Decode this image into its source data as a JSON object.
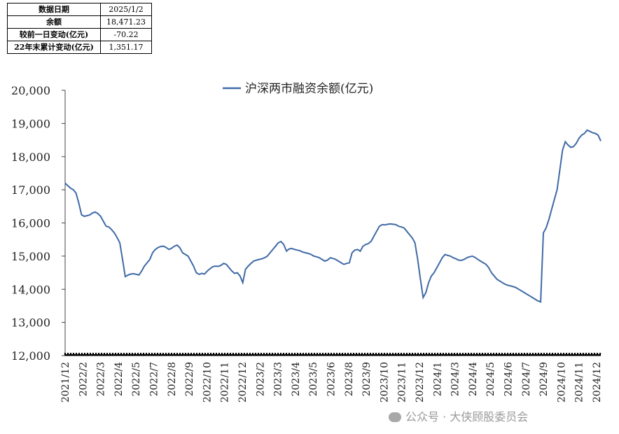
{
  "info_table": {
    "rows": [
      {
        "label": "数据日期",
        "value": "2025/1/2"
      },
      {
        "label": "余额",
        "value": "18,471.23"
      },
      {
        "label": "较前一日变动(亿元)",
        "value": "-70.22"
      },
      {
        "label": "22年末累计变动(亿元)",
        "value": "1,351.17"
      }
    ]
  },
  "watermark": {
    "text": "公众号 · 大侠顾股委员会"
  },
  "chart_data": {
    "type": "line",
    "title": "",
    "xlabel": "",
    "ylabel": "",
    "ylim": [
      12000,
      20000
    ],
    "yticks": [
      12000,
      13000,
      14000,
      15000,
      16000,
      17000,
      18000,
      19000,
      20000
    ],
    "ytick_labels": [
      "12,000",
      "13,000",
      "14,000",
      "15,000",
      "16,000",
      "17,000",
      "18,000",
      "19,000",
      "20,000"
    ],
    "grid": false,
    "legend": "top-center",
    "xtick_labels": [
      "2021/12",
      "2022/2",
      "2022/3",
      "2022/4",
      "2022/5",
      "2022/7",
      "2022/8",
      "2022/9",
      "2022/10",
      "2022/11",
      "2022/12",
      "2023/2",
      "2023/3",
      "2023/4",
      "2023/5",
      "2023/6",
      "2023/8",
      "2023/9",
      "2023/10",
      "2023/11",
      "2023/12",
      "2024/1",
      "2024/3",
      "2024/4",
      "2024/5",
      "2024/6",
      "2024/7",
      "2024/9",
      "2024/10",
      "2024/11",
      "2024/12"
    ],
    "series": [
      {
        "name": "沪深两市融资余额(亿元)",
        "color": "#3f6aa6",
        "values": [
          17200,
          17120,
          17050,
          17000,
          16900,
          16600,
          16250,
          16200,
          16220,
          16240,
          16300,
          16330,
          16280,
          16200,
          16050,
          15900,
          15880,
          15800,
          15700,
          15560,
          15400,
          14900,
          14380,
          14430,
          14460,
          14470,
          14450,
          14430,
          14550,
          14700,
          14800,
          14900,
          15100,
          15200,
          15260,
          15290,
          15300,
          15260,
          15200,
          15240,
          15300,
          15330,
          15250,
          15100,
          15050,
          15000,
          14850,
          14700,
          14500,
          14450,
          14480,
          14460,
          14550,
          14620,
          14680,
          14700,
          14690,
          14720,
          14780,
          14750,
          14650,
          14550,
          14480,
          14500,
          14400,
          14200,
          14600,
          14700,
          14780,
          14850,
          14880,
          14900,
          14920,
          14950,
          15000,
          15100,
          15200,
          15300,
          15400,
          15440,
          15350,
          15150,
          15220,
          15230,
          15200,
          15180,
          15160,
          15120,
          15100,
          15080,
          15050,
          15000,
          14980,
          14950,
          14900,
          14850,
          14880,
          14950,
          14930,
          14900,
          14850,
          14800,
          14750,
          14780,
          14800,
          15100,
          15180,
          15200,
          15150,
          15300,
          15350,
          15380,
          15450,
          15600,
          15750,
          15900,
          15950,
          15940,
          15960,
          15970,
          15960,
          15950,
          15900,
          15880,
          15850,
          15750,
          15650,
          15550,
          15400,
          14900,
          14300,
          13750,
          13900,
          14200,
          14400,
          14500,
          14650,
          14800,
          14950,
          15050,
          15020,
          15000,
          14950,
          14920,
          14880,
          14870,
          14900,
          14950,
          14980,
          15000,
          14960,
          14900,
          14850,
          14800,
          14750,
          14650,
          14500,
          14400,
          14300,
          14250,
          14200,
          14150,
          14120,
          14100,
          14080,
          14050,
          14000,
          13950,
          13900,
          13850,
          13800,
          13750,
          13700,
          13650,
          13620,
          15700,
          15850,
          16100,
          16400,
          16700,
          17000,
          17600,
          18200,
          18450,
          18350,
          18280,
          18300,
          18400,
          18550,
          18650,
          18700,
          18800,
          18760,
          18720,
          18700,
          18650,
          18471
        ]
      }
    ]
  }
}
